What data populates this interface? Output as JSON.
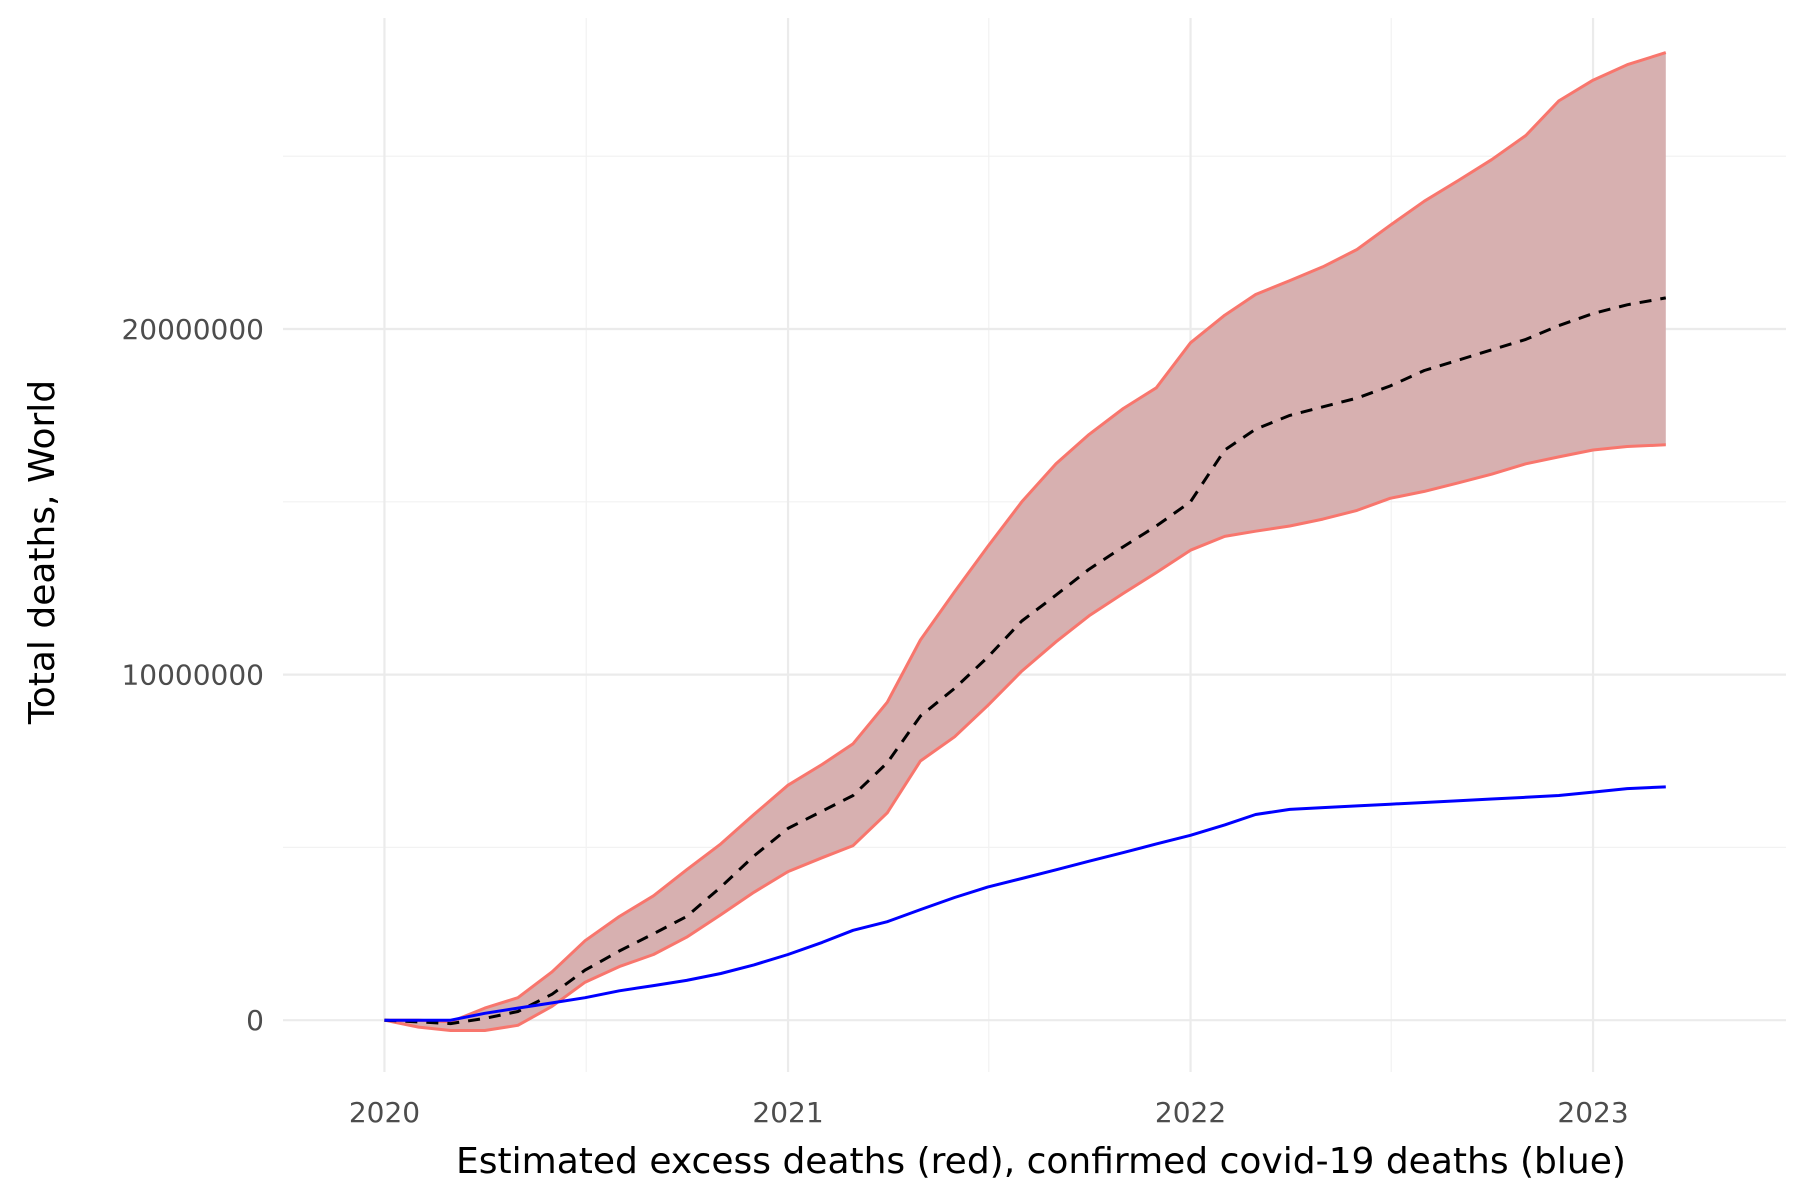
{
  "chart_data": {
    "type": "line",
    "xlabel": "Estimated excess deaths (red), confirmed covid-19 deaths (blue)",
    "ylabel": "Total deaths, World",
    "x_ticks": [
      "2020",
      "2021",
      "2022",
      "2023"
    ],
    "y_ticks": [
      "0",
      "10000000",
      "20000000"
    ],
    "xlim": [
      "2019-10-01",
      "2023-06-25"
    ],
    "ylim": [
      -1500000,
      29000000
    ],
    "grid": true,
    "legend": "none",
    "colors": {
      "band_fill": "#d7b0b0",
      "band_edge": "#f8766d",
      "estimate": "#000000",
      "confirmed": "#0000ff"
    },
    "series": [
      {
        "kind": "band",
        "x": [
          "2020-01-01",
          "2020-02-01",
          "2020-03-01",
          "2020-04-01",
          "2020-05-01",
          "2020-06-01",
          "2020-07-01",
          "2020-08-01",
          "2020-09-01",
          "2020-10-01",
          "2020-11-01",
          "2020-12-01",
          "2021-01-01",
          "2021-02-01",
          "2021-03-01",
          "2021-04-01",
          "2021-05-01",
          "2021-06-01",
          "2021-07-01",
          "2021-08-01",
          "2021-09-01",
          "2021-10-01",
          "2021-11-01",
          "2021-12-01",
          "2022-01-01",
          "2022-02-01",
          "2022-03-01",
          "2022-04-01",
          "2022-05-01",
          "2022-06-01",
          "2022-07-01",
          "2022-08-01",
          "2022-09-01",
          "2022-10-01",
          "2022-11-01",
          "2022-12-01",
          "2023-01-01",
          "2023-02-01",
          "2023-03-08"
        ],
        "upper": [
          0,
          0,
          -50000,
          350000,
          650000,
          1400000,
          2300000,
          3000000,
          3600000,
          4350000,
          5100000,
          5950000,
          6800000,
          7400000,
          8000000,
          9200000,
          11000000,
          12400000,
          13700000,
          15000000,
          16100000,
          16950000,
          17700000,
          18300000,
          19600000,
          20400000,
          21000000,
          21400000,
          21800000,
          22300000,
          23000000,
          23700000,
          24300000,
          24900000,
          25600000,
          26600000,
          27200000,
          27650000,
          28000000
        ],
        "lower": [
          0,
          -200000,
          -300000,
          -300000,
          -150000,
          400000,
          1100000,
          1550000,
          1900000,
          2400000,
          3050000,
          3700000,
          4300000,
          4700000,
          5050000,
          6000000,
          7500000,
          8200000,
          9100000,
          10100000,
          10950000,
          11700000,
          12350000,
          12950000,
          13600000,
          14000000,
          14150000,
          14300000,
          14500000,
          14750000,
          15100000,
          15300000,
          15550000,
          15800000,
          16100000,
          16300000,
          16500000,
          16600000,
          16650000
        ]
      },
      {
        "kind": "dashed",
        "x": [
          "2020-01-01",
          "2020-02-01",
          "2020-03-01",
          "2020-04-01",
          "2020-05-01",
          "2020-06-01",
          "2020-07-01",
          "2020-08-01",
          "2020-09-01",
          "2020-10-01",
          "2020-11-01",
          "2020-12-01",
          "2021-01-01",
          "2021-02-01",
          "2021-03-01",
          "2021-04-01",
          "2021-05-01",
          "2021-06-01",
          "2021-07-01",
          "2021-08-01",
          "2021-09-01",
          "2021-10-01",
          "2021-11-01",
          "2021-12-01",
          "2022-01-01",
          "2022-02-01",
          "2022-03-01",
          "2022-04-01",
          "2022-05-01",
          "2022-06-01",
          "2022-07-01",
          "2022-08-01",
          "2022-09-01",
          "2022-10-01",
          "2022-11-01",
          "2022-12-01",
          "2023-01-01",
          "2023-02-01",
          "2023-03-08"
        ],
        "values": [
          0,
          -50000,
          -100000,
          50000,
          250000,
          750000,
          1450000,
          2000000,
          2500000,
          3000000,
          3850000,
          4750000,
          5550000,
          6050000,
          6500000,
          7450000,
          8800000,
          9600000,
          10500000,
          11550000,
          12300000,
          13050000,
          13700000,
          14300000,
          15000000,
          16500000,
          17100000,
          17500000,
          17750000,
          18000000,
          18350000,
          18800000,
          19100000,
          19400000,
          19700000,
          20100000,
          20450000,
          20700000,
          20900000
        ],
        "name": ""
      },
      {
        "kind": "solid",
        "x": [
          "2020-01-01",
          "2020-02-01",
          "2020-03-01",
          "2020-04-01",
          "2020-05-01",
          "2020-06-01",
          "2020-07-01",
          "2020-08-01",
          "2020-09-01",
          "2020-10-01",
          "2020-11-01",
          "2020-12-01",
          "2021-01-01",
          "2021-02-01",
          "2021-03-01",
          "2021-04-01",
          "2021-05-01",
          "2021-06-01",
          "2021-07-01",
          "2021-08-01",
          "2021-09-01",
          "2021-10-01",
          "2021-11-01",
          "2021-12-01",
          "2022-01-01",
          "2022-02-01",
          "2022-03-01",
          "2022-04-01",
          "2022-05-01",
          "2022-06-01",
          "2022-07-01",
          "2022-08-01",
          "2022-09-01",
          "2022-10-01",
          "2022-11-01",
          "2022-12-01",
          "2023-01-01",
          "2023-02-01",
          "2023-03-08"
        ],
        "values": [
          0,
          0,
          0,
          200000,
          350000,
          500000,
          650000,
          850000,
          1000000,
          1150000,
          1350000,
          1600000,
          1900000,
          2250000,
          2600000,
          2850000,
          3200000,
          3550000,
          3850000,
          4100000,
          4350000,
          4600000,
          4850000,
          5100000,
          5350000,
          5650000,
          5950000,
          6100000,
          6150000,
          6200000,
          6250000,
          6300000,
          6350000,
          6400000,
          6450000,
          6500000,
          6600000,
          6700000,
          6750000
        ],
        "name": ""
      }
    ]
  }
}
